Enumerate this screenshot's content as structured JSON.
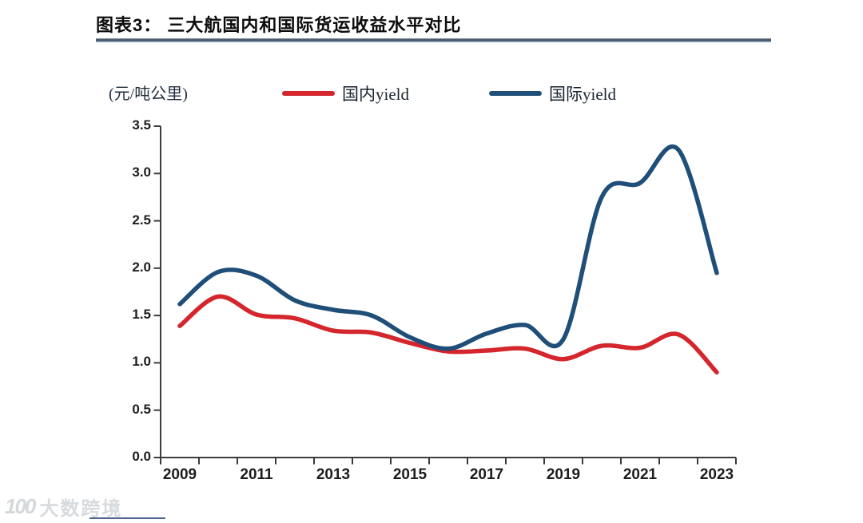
{
  "header": {
    "title": "图表3：  三大航国内和国际货运收益水平对比"
  },
  "chart": {
    "unit_label": "(元/吨公里)",
    "legend": [
      {
        "label": "国内yield",
        "color": "#d4262c"
      },
      {
        "label": "国际yield",
        "color": "#1f4e79"
      }
    ]
  },
  "chart_data": {
    "type": "line",
    "title": "三大航国内和国际货运收益水平对比",
    "ylabel": "(元/吨公里)",
    "xlabel": "",
    "ylim": [
      0,
      3.5
    ],
    "y_tick_step": 0.5,
    "grid": false,
    "smoothed": true,
    "legend_position": "top",
    "x": [
      2009,
      2010,
      2011,
      2012,
      2013,
      2014,
      2015,
      2016,
      2017,
      2018,
      2019,
      2020,
      2021,
      2022,
      2023
    ],
    "series": [
      {
        "name": "国内yield",
        "color": "#d4262c",
        "values": [
          1.39,
          1.7,
          1.51,
          1.47,
          1.34,
          1.32,
          1.21,
          1.12,
          1.13,
          1.15,
          1.04,
          1.18,
          1.16,
          1.3,
          0.9
        ]
      },
      {
        "name": "国际yield",
        "color": "#1f4e79",
        "values": [
          1.62,
          1.96,
          1.92,
          1.66,
          1.56,
          1.5,
          1.27,
          1.15,
          1.31,
          1.4,
          1.25,
          2.75,
          2.9,
          3.25,
          1.95
        ]
      }
    ],
    "y_tick_labels": [
      "0.0",
      "0.5",
      "1.0",
      "1.5",
      "2.0",
      "2.5",
      "3.0",
      "3.5"
    ],
    "x_tick_labels": [
      "2009",
      "2011",
      "2013",
      "2015",
      "2017",
      "2019",
      "2021",
      "2023"
    ]
  },
  "watermark": {
    "logo": "100",
    "text": "大数跨境"
  }
}
